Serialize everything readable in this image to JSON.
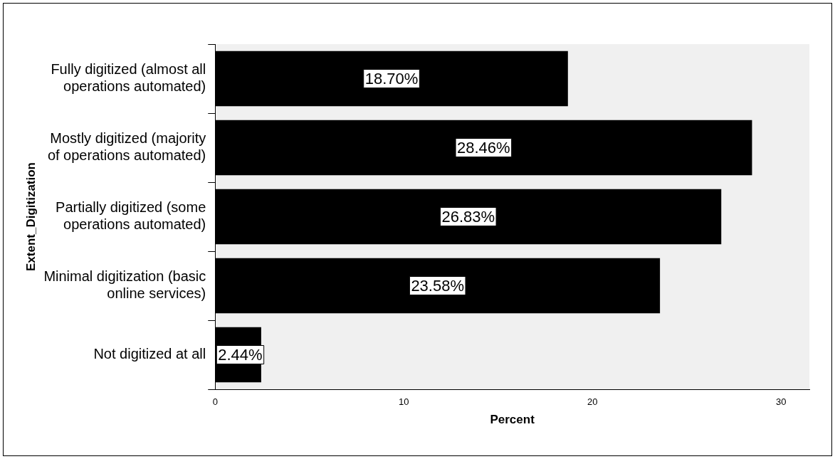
{
  "chart_data": {
    "type": "bar",
    "orientation": "horizontal",
    "xlabel": "Percent",
    "ylabel": "Extent_Digitization",
    "categories": [
      "Fully digitized (almost all operations automated)",
      "Mostly digitized (majority of operations automated)",
      "Partially digitized (some operations automated)",
      "Minimal digitization (basic online services)",
      "Not digitized at all"
    ],
    "values": [
      18.7,
      28.46,
      26.83,
      23.58,
      2.44
    ],
    "value_labels": [
      "18.70%",
      "28.46%",
      "26.83%",
      "23.58%",
      "2.44%"
    ],
    "color": "#000000",
    "xlim": [
      0,
      31.5
    ],
    "xticks": [
      0,
      10,
      20,
      30
    ],
    "grid": false,
    "legend": false
  }
}
